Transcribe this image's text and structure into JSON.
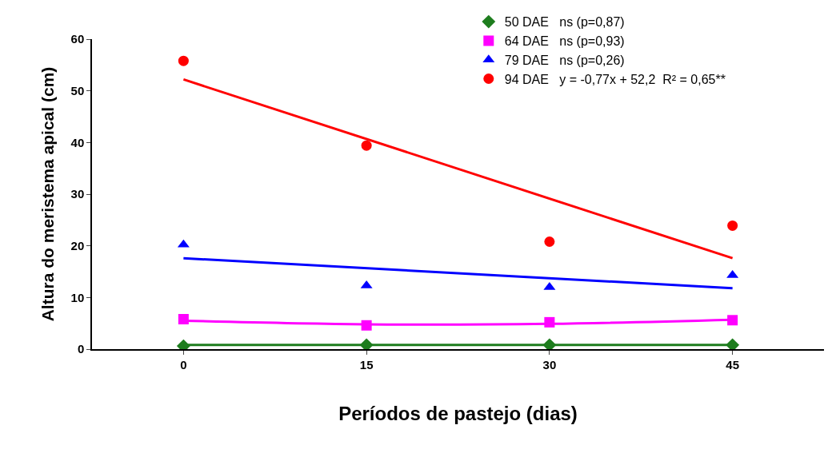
{
  "chart_data": {
    "type": "scatter",
    "xlabel": "Períodos de pastejo (dias)",
    "ylabel": "Altura do meristema apical (cm)",
    "x": [
      0,
      15,
      30,
      45
    ],
    "xlim": [
      -7.5,
      52.5
    ],
    "xticks": [
      0,
      15,
      30,
      45
    ],
    "ylim": [
      0,
      60
    ],
    "yticks": [
      0,
      10,
      20,
      30,
      40,
      50,
      60
    ],
    "legend": "top right",
    "series": [
      {
        "name": "50 DAE   ns (p=0,87)",
        "color": "#1e7d1e",
        "marker": "diamond",
        "values": [
          0.6,
          0.8,
          0.8,
          0.8
        ]
      },
      {
        "name": "64 DAE   ns (p=0,93)",
        "color": "#ff00ff",
        "marker": "square",
        "values": [
          5.8,
          4.6,
          5.2,
          5.6
        ]
      },
      {
        "name": "79 DAE   ns (p=0,26)",
        "color": "#0000ff",
        "marker": "triangle",
        "values": [
          20.2,
          12.3,
          12.0,
          14.3
        ]
      },
      {
        "name": "94 DAE   y = -0,77x + 52,2  R² = 0,65**",
        "color": "#ff0000",
        "marker": "circle",
        "values": [
          55.8,
          39.4,
          20.8,
          23.9
        ]
      },
      {
        "type": "line",
        "color": "#1e7d1e",
        "x": [
          0,
          45
        ],
        "values": [
          0.8,
          0.8
        ]
      },
      {
        "type": "line",
        "color": "#ff00ff",
        "x": [
          0,
          15,
          30,
          45
        ],
        "values": [
          5.5,
          4.8,
          4.9,
          5.7
        ]
      },
      {
        "type": "line",
        "color": "#0000ff",
        "x": [
          0,
          45
        ],
        "values": [
          17.6,
          11.8
        ]
      },
      {
        "type": "line",
        "color": "#ff0000",
        "x": [
          0,
          45
        ],
        "values": [
          52.2,
          17.6
        ]
      }
    ]
  }
}
